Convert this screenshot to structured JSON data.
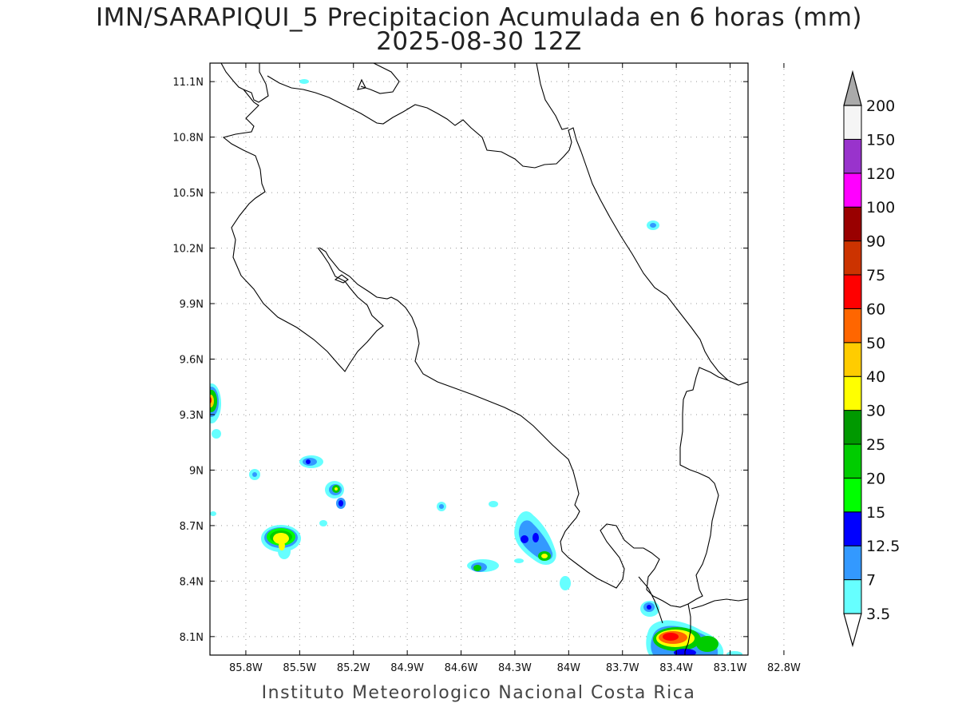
{
  "header": {
    "title": "IMN/SARAPIQUI_5 Precipitacion Acumulada en 6 horas (mm)",
    "subtitle": "2025-08-30 12Z"
  },
  "footer": {
    "credit": "Instituto Meteorologico Nacional Costa Rica"
  },
  "map": {
    "lon_range": [
      -86.0,
      -83.0
    ],
    "lat_range": [
      8.0,
      11.2
    ],
    "lon_ticks": [
      {
        "value": -85.8,
        "label": "85.8W"
      },
      {
        "value": -85.5,
        "label": "85.5W"
      },
      {
        "value": -85.2,
        "label": "85.2W"
      },
      {
        "value": -84.9,
        "label": "84.9W"
      },
      {
        "value": -84.6,
        "label": "84.6W"
      },
      {
        "value": -84.3,
        "label": "84.3W"
      },
      {
        "value": -84.0,
        "label": "84W"
      },
      {
        "value": -83.7,
        "label": "83.7W"
      },
      {
        "value": -83.4,
        "label": "83.4W"
      },
      {
        "value": -83.1,
        "label": "83.1W"
      },
      {
        "value": -82.8,
        "label": "82.8W"
      }
    ],
    "lat_ticks": [
      {
        "value": 11.1,
        "label": "11.1N"
      },
      {
        "value": 10.8,
        "label": "10.8N"
      },
      {
        "value": 10.5,
        "label": "10.5N"
      },
      {
        "value": 10.2,
        "label": "10.2N"
      },
      {
        "value": 9.9,
        "label": "9.9N"
      },
      {
        "value": 9.6,
        "label": "9.6N"
      },
      {
        "value": 9.3,
        "label": "9.3N"
      },
      {
        "value": 9.0,
        "label": "9N"
      },
      {
        "value": 8.7,
        "label": "8.7N"
      },
      {
        "value": 8.4,
        "label": "8.4N"
      },
      {
        "value": 8.1,
        "label": "8.1N"
      }
    ],
    "grid": true
  },
  "colorbar": {
    "levels": [
      {
        "label": "3.5",
        "color": "#66ffff"
      },
      {
        "label": "7",
        "color": "#3399ff"
      },
      {
        "label": "12.5",
        "color": "#0000ff"
      },
      {
        "label": "15",
        "color": "#00ff00"
      },
      {
        "label": "20",
        "color": "#00cc00"
      },
      {
        "label": "25",
        "color": "#009900"
      },
      {
        "label": "30",
        "color": "#ffff00"
      },
      {
        "label": "40",
        "color": "#ffcc00"
      },
      {
        "label": "50",
        "color": "#ff6600"
      },
      {
        "label": "60",
        "color": "#ff0000"
      },
      {
        "label": "75",
        "color": "#cc3300"
      },
      {
        "label": "90",
        "color": "#990000"
      },
      {
        "label": "100",
        "color": "#ff00ff"
      },
      {
        "label": "120",
        "color": "#9933cc"
      },
      {
        "label": "150",
        "color": "#f5f5f5"
      },
      {
        "label": "200",
        "color": "#aaaaaa"
      }
    ]
  }
}
